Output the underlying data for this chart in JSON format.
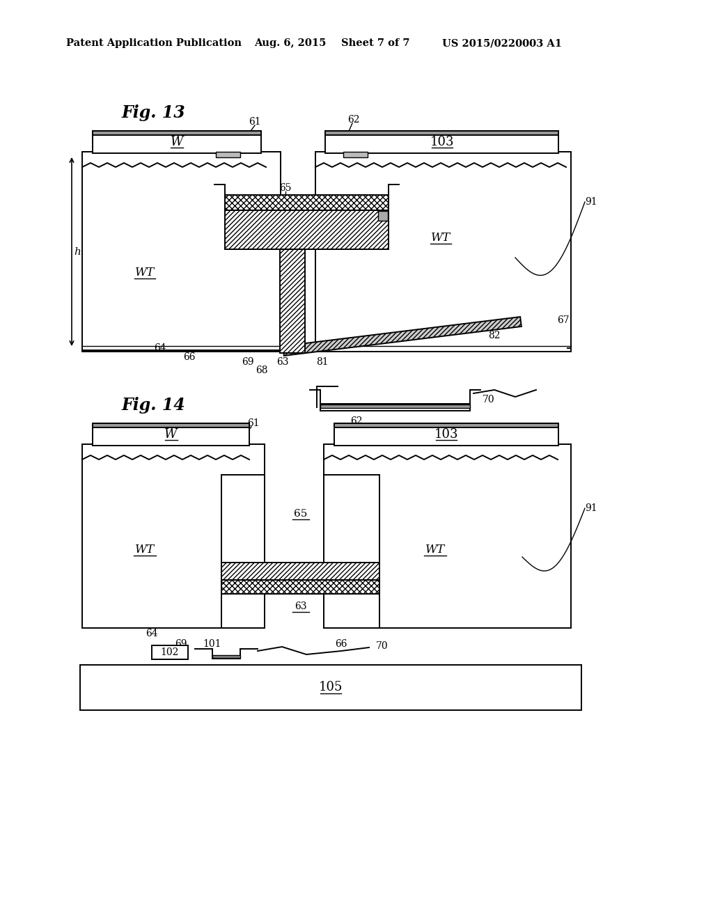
{
  "bg_color": "#ffffff",
  "header_text": "Patent Application Publication",
  "header_date": "Aug. 6, 2015",
  "header_sheet": "Sheet 7 of 7",
  "header_patent": "US 2015/0220003 A1",
  "fig13_label": "Fig. 13",
  "fig14_label": "Fig. 14",
  "lw": 1.4
}
